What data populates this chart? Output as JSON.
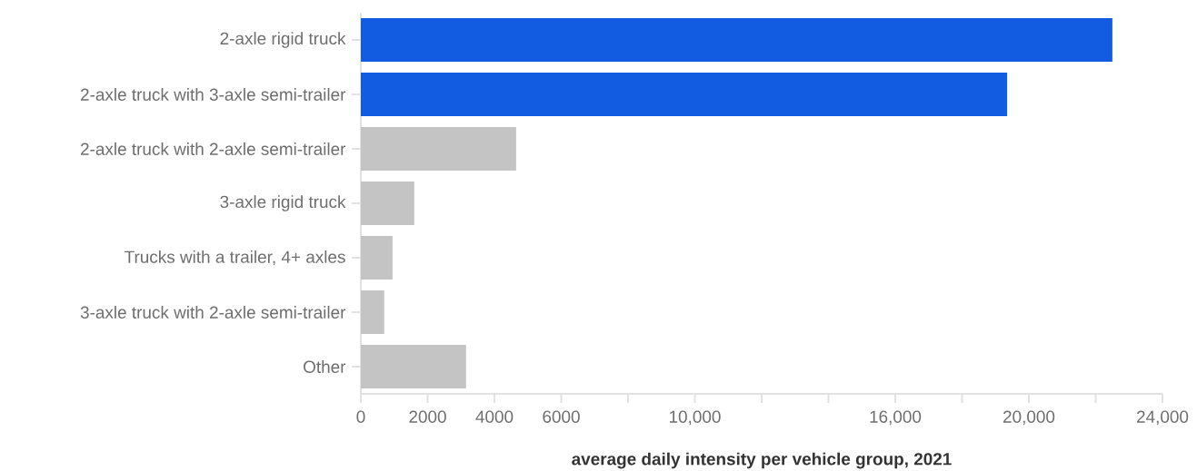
{
  "chart_data": {
    "type": "bar",
    "orientation": "horizontal",
    "xlabel": "average daily intensity per vehicle group, 2021",
    "categories": [
      "2-axle rigid truck",
      "2-axle truck with 3-axle semi-trailer",
      "2-axle truck with 2-axle semi-trailer",
      "3-axle rigid truck",
      "Trucks with a trailer, 4+ axles",
      "3-axle truck with 2-axle semi-trailer",
      "Other"
    ],
    "values": [
      22500,
      19350,
      4650,
      1600,
      950,
      700,
      3150
    ],
    "colors": [
      "#115ce0",
      "#115ce0",
      "#c4c4c4",
      "#c4c4c4",
      "#c4c4c4",
      "#c4c4c4",
      "#c4c4c4"
    ],
    "xlim": [
      0,
      24000
    ],
    "xticks": [
      0,
      2000,
      4000,
      6000,
      {
        "value": 8000,
        "label": null
      },
      {
        "value": 10000,
        "label": "10,000"
      },
      {
        "value": 12000,
        "label": null
      },
      {
        "value": 14000,
        "label": null
      },
      {
        "value": 16000,
        "label": "16,000"
      },
      {
        "value": 18000,
        "label": null
      },
      {
        "value": 20000,
        "label": "20,000"
      },
      {
        "value": 22000,
        "label": null
      },
      {
        "value": 24000,
        "label": "24,000"
      }
    ]
  }
}
